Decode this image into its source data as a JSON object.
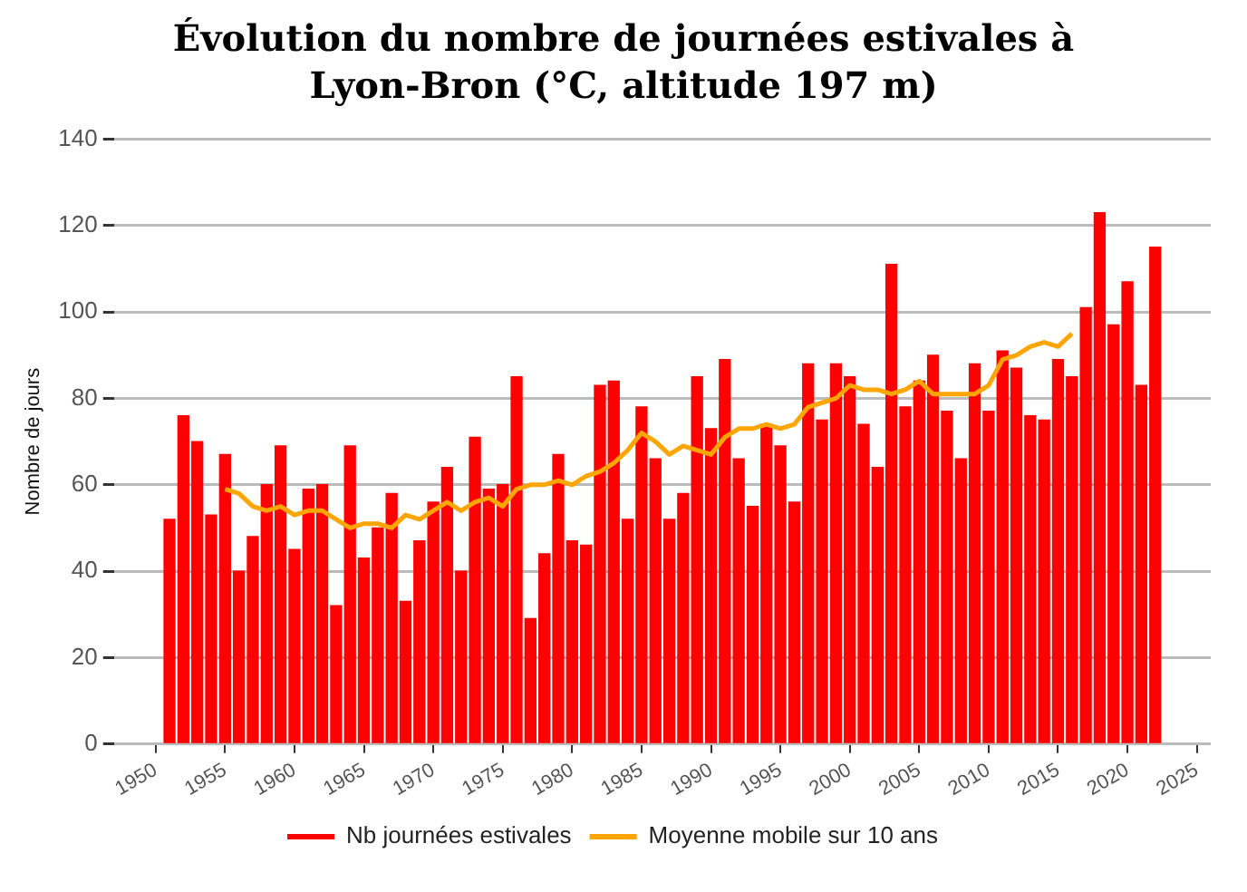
{
  "chart_data": {
    "type": "bar",
    "title": "Évolution du nombre de journées estivales à Lyon-Bron (°C, altitude 197 m)",
    "ylabel": "Nombre de jours",
    "x": [
      1951,
      1952,
      1953,
      1954,
      1955,
      1956,
      1957,
      1958,
      1959,
      1960,
      1961,
      1962,
      1963,
      1964,
      1965,
      1966,
      1967,
      1968,
      1969,
      1970,
      1971,
      1972,
      1973,
      1974,
      1975,
      1976,
      1977,
      1978,
      1979,
      1980,
      1981,
      1982,
      1983,
      1984,
      1985,
      1986,
      1987,
      1988,
      1989,
      1990,
      1991,
      1992,
      1993,
      1994,
      1995,
      1996,
      1997,
      1998,
      1999,
      2000,
      2001,
      2002,
      2003,
      2004,
      2005,
      2006,
      2007,
      2008,
      2009,
      2010,
      2011,
      2012,
      2013,
      2014,
      2015,
      2016,
      2017,
      2018,
      2019,
      2020,
      2021,
      2022
    ],
    "series": [
      {
        "name": "Nb journées estivales",
        "color": "#ff0000",
        "values": [
          52,
          76,
          70,
          53,
          67,
          40,
          48,
          60,
          69,
          45,
          59,
          60,
          32,
          69,
          43,
          50,
          58,
          33,
          47,
          56,
          64,
          40,
          71,
          59,
          60,
          85,
          29,
          44,
          67,
          47,
          46,
          83,
          84,
          52,
          78,
          66,
          52,
          58,
          85,
          73,
          89,
          66,
          55,
          74,
          69,
          56,
          88,
          75,
          88,
          85,
          74,
          64,
          111,
          78,
          84,
          90,
          77,
          66,
          88,
          77,
          91,
          87,
          76,
          75,
          89,
          85,
          101,
          123,
          97,
          107,
          83,
          115
        ]
      },
      {
        "name": "Moyenne mobile sur 10 ans",
        "type": "line",
        "color": "#ffa500",
        "x": [
          1955,
          1956,
          1957,
          1958,
          1959,
          1960,
          1961,
          1962,
          1963,
          1964,
          1965,
          1966,
          1967,
          1968,
          1969,
          1970,
          1971,
          1972,
          1973,
          1974,
          1975,
          1976,
          1977,
          1978,
          1979,
          1980,
          1981,
          1982,
          1983,
          1984,
          1985,
          1986,
          1987,
          1988,
          1989,
          1990,
          1991,
          1992,
          1993,
          1994,
          1995,
          1996,
          1997,
          1998,
          1999,
          2000,
          2001,
          2002,
          2003,
          2004,
          2005,
          2006,
          2007,
          2008,
          2009,
          2010,
          2011,
          2012,
          2013,
          2014,
          2015,
          2016
        ],
        "values": [
          59,
          58,
          55,
          54,
          55,
          53,
          54,
          54,
          52,
          50,
          51,
          51,
          50,
          53,
          52,
          54,
          56,
          54,
          56,
          57,
          55,
          59,
          60,
          60,
          61,
          60,
          62,
          63,
          65,
          68,
          72,
          70,
          67,
          69,
          68,
          67,
          71,
          73,
          73,
          74,
          73,
          74,
          78,
          79,
          80,
          83,
          82,
          82,
          81,
          82,
          84,
          81,
          81,
          81,
          81,
          83,
          89,
          90,
          92,
          93,
          92,
          95
        ]
      }
    ],
    "xlim": [
      1947,
      2026
    ],
    "xticks": [
      1950,
      1955,
      1960,
      1965,
      1970,
      1975,
      1980,
      1985,
      1990,
      1995,
      2000,
      2005,
      2010,
      2015,
      2020,
      2025
    ],
    "ylim": [
      0,
      140
    ],
    "yticks": [
      0,
      20,
      40,
      60,
      80,
      100,
      120,
      140
    ],
    "grid": "y",
    "legend": "bottom",
    "marker": "none"
  }
}
